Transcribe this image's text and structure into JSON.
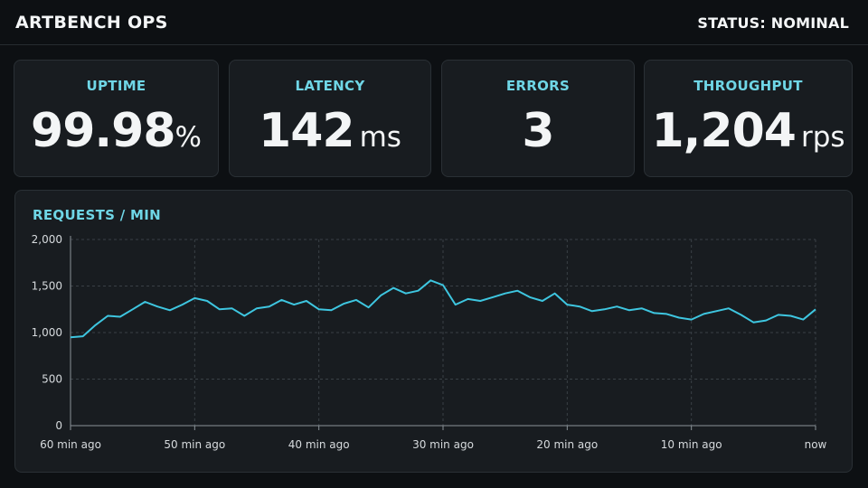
{
  "header": {
    "title": "ARTBENCH OPS",
    "status": "STATUS: NOMINAL"
  },
  "metrics": [
    {
      "label": "UPTIME",
      "value": "99.98",
      "unit": "%"
    },
    {
      "label": "LATENCY",
      "value": "142",
      "unit": "ms"
    },
    {
      "label": "ERRORS",
      "value": "3",
      "unit": ""
    },
    {
      "label": "THROUGHPUT",
      "value": "1,204",
      "unit": "rps"
    }
  ],
  "chart": {
    "title": "REQUESTS / MIN"
  },
  "chart_data": {
    "type": "line",
    "title": "REQUESTS / MIN",
    "xlabel": "",
    "ylabel": "",
    "x_tick_labels": [
      "60 min ago",
      "50 min ago",
      "40 min ago",
      "30 min ago",
      "20 min ago",
      "10 min ago",
      "now"
    ],
    "x_tick_values": [
      60,
      50,
      40,
      30,
      20,
      10,
      0
    ],
    "y_ticks": [
      0,
      500,
      1000,
      1500,
      2000
    ],
    "y_tick_labels": [
      "0",
      "500",
      "1,000",
      "1,500",
      "2,000"
    ],
    "ylim": [
      0,
      2000
    ],
    "xlim": [
      60,
      0
    ],
    "grid": true,
    "line_color": "#3ec6e0",
    "series": [
      {
        "x": [
          60,
          59,
          58,
          57,
          56,
          55,
          54,
          53,
          52,
          51,
          50,
          49,
          48,
          47,
          46,
          45,
          44,
          43,
          42,
          41,
          40,
          39,
          38,
          37,
          36,
          35,
          34,
          33,
          32,
          31,
          30,
          29,
          28,
          27,
          26,
          25,
          24,
          23,
          22,
          21,
          20,
          19,
          18,
          17,
          16,
          15,
          14,
          13,
          12,
          11,
          10,
          9,
          8,
          7,
          6,
          5,
          4,
          3,
          2,
          1,
          0
        ],
        "values": [
          950,
          960,
          1080,
          1180,
          1170,
          1250,
          1330,
          1280,
          1240,
          1300,
          1370,
          1340,
          1250,
          1260,
          1180,
          1260,
          1280,
          1350,
          1300,
          1340,
          1250,
          1240,
          1310,
          1350,
          1270,
          1400,
          1480,
          1420,
          1450,
          1560,
          1510,
          1300,
          1360,
          1340,
          1380,
          1420,
          1450,
          1380,
          1340,
          1420,
          1300,
          1280,
          1230,
          1250,
          1280,
          1240,
          1260,
          1210,
          1200,
          1160,
          1140,
          1200,
          1230,
          1260,
          1190,
          1110,
          1130,
          1190,
          1180,
          1140,
          1250
        ]
      }
    ]
  }
}
